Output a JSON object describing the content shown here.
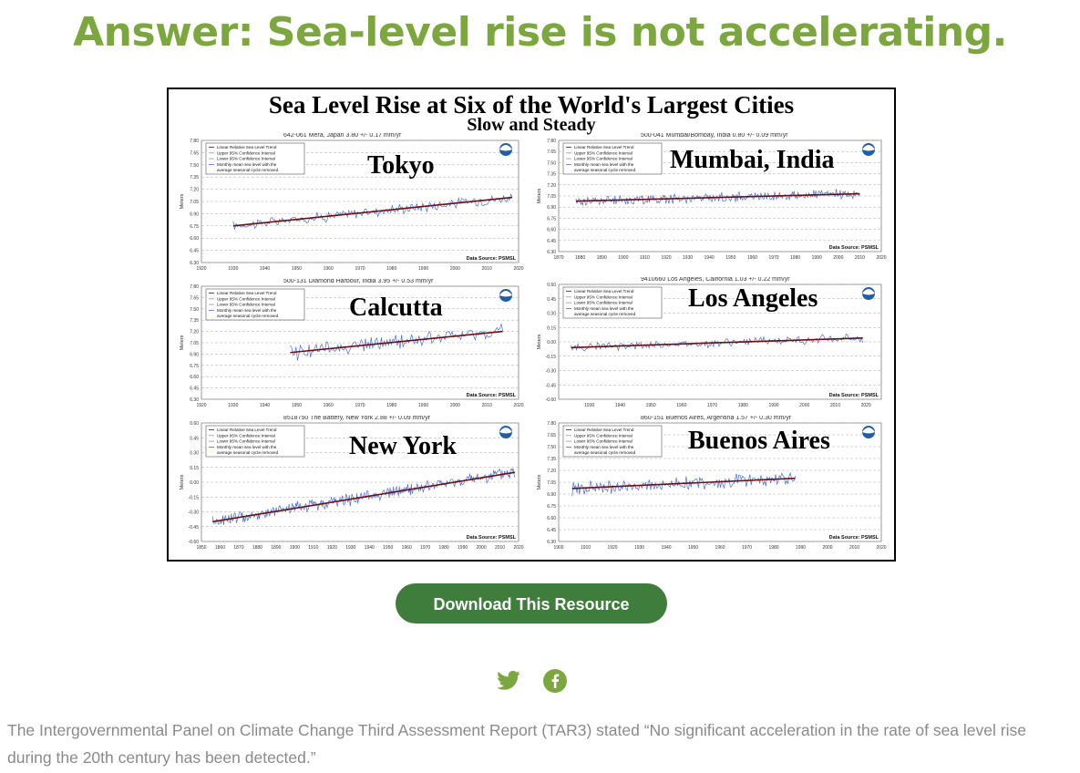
{
  "headline": "Answer: Sea-level rise is not accelerating.",
  "figure": {
    "title": "Sea Level Rise at Six of the World's Largest Cities",
    "subtitle": "Slow and Steady",
    "legend": [
      "Linear Relative Sea Level Trend",
      "Upper 95% Confidence Interval",
      "Lower 95% Confidence Interval",
      "Monthly mean sea level with the",
      "average seasonal cycle removed"
    ],
    "y_axis_label": "Meters",
    "data_source": "Data Source: PSMSL"
  },
  "chart_data": [
    {
      "type": "line",
      "city": "Tokyo",
      "station": "642-061 Mera, Japan",
      "trend": "3.80 +/- 0.17 mm/yr",
      "x_start": 1930,
      "x_end": 2018,
      "xlim": [
        1920,
        2020
      ],
      "ylim": [
        6.3,
        7.8
      ],
      "trend_start": 6.75,
      "trend_end": 7.1,
      "noise": 0.05,
      "xticks": [
        "1920",
        "1930",
        "1940",
        "1950",
        "1960",
        "1970",
        "1980",
        "1990",
        "2000",
        "2010",
        "2020"
      ],
      "yticks": [
        "7.80",
        "7.65",
        "7.50",
        "7.35",
        "7.20",
        "7.05",
        "6.90",
        "6.75",
        "6.60",
        "6.45",
        "6.30"
      ]
    },
    {
      "type": "line",
      "city": "Mumbai, India",
      "station": "500-041 Mumbai/Bombay, India",
      "trend": "0.80 +/- 0.09 mm/yr",
      "x_start": 1878,
      "x_end": 2010,
      "xlim": [
        1870,
        2020
      ],
      "ylim": [
        6.3,
        7.8
      ],
      "trend_start": 6.98,
      "trend_end": 7.08,
      "noise": 0.05,
      "xticks": [
        "1870",
        "1880",
        "1890",
        "1900",
        "1910",
        "1920",
        "1930",
        "1940",
        "1950",
        "1960",
        "1970",
        "1980",
        "1990",
        "2000",
        "2010",
        "2020"
      ],
      "yticks": [
        "7.80",
        "7.65",
        "7.50",
        "7.35",
        "7.20",
        "7.05",
        "6.90",
        "6.75",
        "6.60",
        "6.45",
        "6.30"
      ]
    },
    {
      "type": "line",
      "city": "Calcutta",
      "station": "500-131 Diamond Harbour, India",
      "trend": "3.95 +/- 0.53 mm/yr",
      "x_start": 1948,
      "x_end": 2015,
      "xlim": [
        1920,
        2020
      ],
      "ylim": [
        6.3,
        7.8
      ],
      "trend_start": 6.92,
      "trend_end": 7.2,
      "noise": 0.08,
      "xticks": [
        "1920",
        "1930",
        "1940",
        "1950",
        "1960",
        "1970",
        "1980",
        "1990",
        "2000",
        "2010",
        "2020"
      ],
      "yticks": [
        "7.80",
        "7.65",
        "7.50",
        "7.35",
        "7.20",
        "7.05",
        "6.90",
        "6.75",
        "6.60",
        "6.45",
        "6.30"
      ]
    },
    {
      "type": "line",
      "city": "Los Angeles",
      "station": "9410660 Los Angeles, California",
      "trend": "1.03 +/- 0.22 mm/yr",
      "x_start": 1924,
      "x_end": 2019,
      "xlim": [
        1920,
        2025
      ],
      "ylim": [
        -0.6,
        0.6
      ],
      "trend_start": -0.06,
      "trend_end": 0.04,
      "noise": 0.035,
      "xticks": [
        "1930",
        "1940",
        "1950",
        "1960",
        "1970",
        "1980",
        "1990",
        "2000",
        "2010",
        "2020"
      ],
      "yticks": [
        "0.60",
        "0.45",
        "0.30",
        "0.15",
        "0.00",
        "-0.15",
        "-0.30",
        "-0.45",
        "-0.60"
      ]
    },
    {
      "type": "line",
      "city": "New York",
      "station": "8518750 The Battery, New York",
      "trend": "2.88 +/- 0.09 mm/yr",
      "x_start": 1856,
      "x_end": 2018,
      "xlim": [
        1850,
        2020
      ],
      "ylim": [
        -0.6,
        0.6
      ],
      "trend_start": -0.4,
      "trend_end": 0.1,
      "noise": 0.05,
      "xticks": [
        "1850",
        "1860",
        "1870",
        "1880",
        "1890",
        "1900",
        "1910",
        "1920",
        "1930",
        "1940",
        "1950",
        "1960",
        "1970",
        "1980",
        "1990",
        "2000",
        "2010",
        "2020"
      ],
      "yticks": [
        "0.60",
        "0.45",
        "0.30",
        "0.15",
        "0.00",
        "-0.15",
        "-0.30",
        "-0.45",
        "-0.60"
      ]
    },
    {
      "type": "line",
      "city": "Buenos Aires",
      "station": "860-151 Buenos Aires, Argentina",
      "trend": "1.57 +/- 0.30 mm/yr",
      "x_start": 1905,
      "x_end": 1988,
      "xlim": [
        1900,
        2020
      ],
      "ylim": [
        6.3,
        7.8
      ],
      "trend_start": 6.97,
      "trend_end": 7.1,
      "noise": 0.07,
      "xticks": [
        "1900",
        "1910",
        "1920",
        "1930",
        "1940",
        "1950",
        "1960",
        "1970",
        "1980",
        "1990",
        "2000",
        "2010",
        "2020"
      ],
      "yticks": [
        "7.80",
        "7.65",
        "7.50",
        "7.35",
        "7.20",
        "7.05",
        "6.90",
        "6.75",
        "6.60",
        "6.45",
        "6.30"
      ]
    }
  ],
  "download_label": "Download This Resource",
  "share": {
    "twitter_icon": "twitter-icon",
    "facebook_icon": "facebook-icon",
    "colors": {
      "icon": "#7ba73e",
      "button": "#3e7d3b"
    }
  },
  "caption": "The Intergovernmental Panel on Climate Change Third Assessment Report (TAR3) stated “No significant acceleration in the rate of sea level rise during the 20th century has been detected.”"
}
